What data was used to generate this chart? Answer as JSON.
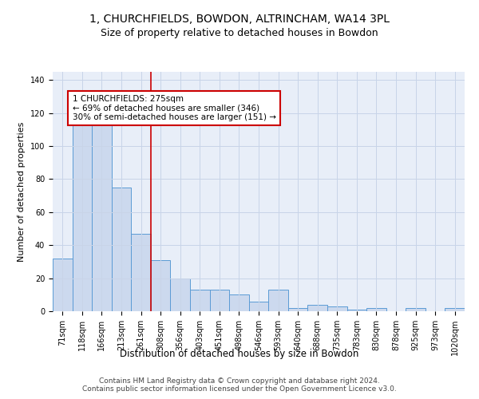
{
  "title1": "1, CHURCHFIELDS, BOWDON, ALTRINCHAM, WA14 3PL",
  "title2": "Size of property relative to detached houses in Bowdon",
  "xlabel": "Distribution of detached houses by size in Bowdon",
  "ylabel": "Number of detached properties",
  "bar_labels": [
    "71sqm",
    "118sqm",
    "166sqm",
    "213sqm",
    "261sqm",
    "308sqm",
    "356sqm",
    "403sqm",
    "451sqm",
    "498sqm",
    "546sqm",
    "593sqm",
    "640sqm",
    "688sqm",
    "735sqm",
    "783sqm",
    "830sqm",
    "878sqm",
    "925sqm",
    "973sqm",
    "1020sqm"
  ],
  "bar_values": [
    32,
    114,
    114,
    75,
    47,
    31,
    20,
    13,
    13,
    10,
    6,
    13,
    2,
    4,
    3,
    1,
    2,
    0,
    2,
    0,
    2
  ],
  "bar_color": "#ccd9ee",
  "bar_edge_color": "#5b9bd5",
  "vline_x": 4.5,
  "vline_color": "#cc0000",
  "annotation_text": "1 CHURCHFIELDS: 275sqm\n← 69% of detached houses are smaller (346)\n30% of semi-detached houses are larger (151) →",
  "annotation_box_color": "#ffffff",
  "annotation_box_edge_color": "#cc0000",
  "ylim": [
    0,
    145
  ],
  "yticks": [
    0,
    20,
    40,
    60,
    80,
    100,
    120,
    140
  ],
  "grid_color": "#c8d4e8",
  "background_color": "#e8eef8",
  "footer_text": "Contains HM Land Registry data © Crown copyright and database right 2024.\nContains public sector information licensed under the Open Government Licence v3.0.",
  "title1_fontsize": 10,
  "title2_fontsize": 9,
  "xlabel_fontsize": 8.5,
  "ylabel_fontsize": 8,
  "tick_fontsize": 7,
  "annotation_fontsize": 7.5,
  "footer_fontsize": 6.5
}
